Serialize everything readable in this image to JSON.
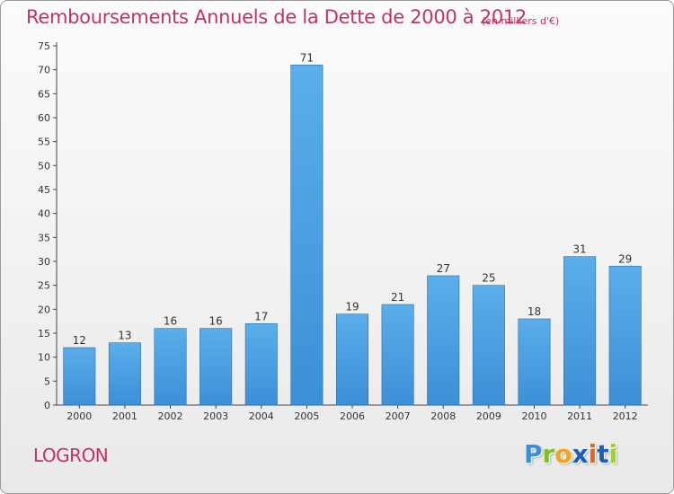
{
  "chart_data": {
    "type": "bar",
    "title": "Remboursements Annuels de la Dette de 2000 à 2012",
    "subtitle": "(en milliers d'€)",
    "categories": [
      "2000",
      "2001",
      "2002",
      "2003",
      "2004",
      "2005",
      "2006",
      "2007",
      "2008",
      "2009",
      "2010",
      "2011",
      "2012"
    ],
    "values": [
      12,
      13,
      16,
      16,
      17,
      71,
      19,
      21,
      27,
      25,
      18,
      31,
      29
    ],
    "xlabel": "",
    "ylabel": "",
    "ylim": [
      0,
      75
    ],
    "ytick_step": 5,
    "grid": false,
    "bar_color": "#3d8fd6",
    "bar_color_light": "#5aaeea"
  },
  "footer": {
    "commune": "LOGRON",
    "brand_letters": [
      "P",
      "r",
      "o",
      "x",
      "i",
      "t",
      "i"
    ],
    "brand_colors": [
      "#3d8fd6",
      "#7fbf2a",
      "#f2a21b",
      "#1e5fb4",
      "#e8641c",
      "#1e5fb4",
      "#9ccf3a"
    ]
  }
}
